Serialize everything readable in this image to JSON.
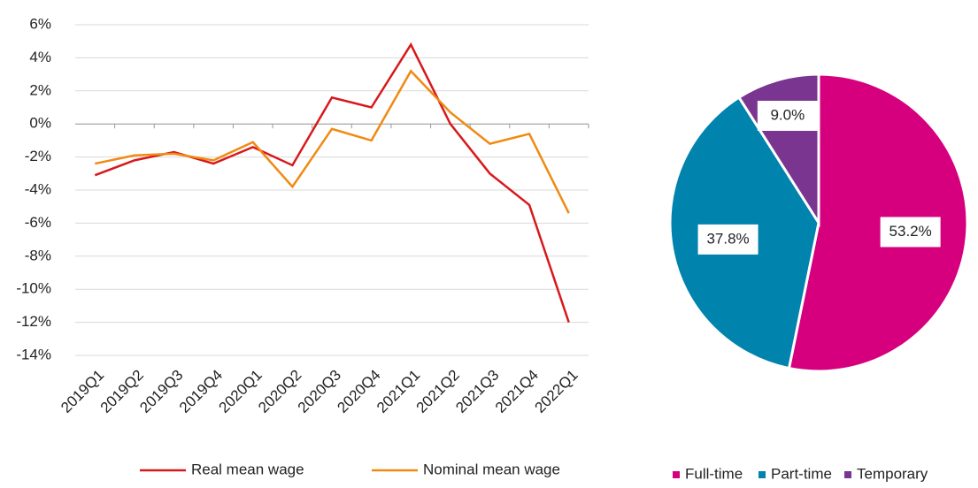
{
  "chart_data": [
    {
      "type": "line",
      "categories": [
        "2019Q1",
        "2019Q2",
        "2019Q3",
        "2019Q4",
        "2020Q1",
        "2020Q2",
        "2020Q3",
        "2020Q4",
        "2021Q1",
        "2021Q2",
        "2021Q3",
        "2021Q4",
        "2022Q1"
      ],
      "series": [
        {
          "name": "Real mean wage",
          "color": "#d7191c",
          "values": [
            -3.1,
            -2.2,
            -1.7,
            -2.4,
            -1.4,
            -2.5,
            1.6,
            1.0,
            4.8,
            0.0,
            -3.0,
            -4.9,
            -12.0
          ]
        },
        {
          "name": "Nominal mean wage",
          "color": "#f08a12",
          "values": [
            -2.4,
            -1.9,
            -1.8,
            -2.2,
            -1.1,
            -3.8,
            -0.3,
            -1.0,
            3.2,
            0.7,
            -1.2,
            -0.6,
            -5.4
          ]
        }
      ],
      "ylim": [
        -14,
        6
      ],
      "yticks": [
        {
          "value": -14,
          "label": "-14%"
        },
        {
          "value": -12,
          "label": "-12%"
        },
        {
          "value": -10,
          "label": "-10%"
        },
        {
          "value": -8,
          "label": "-8%"
        },
        {
          "value": -6,
          "label": "-6%"
        },
        {
          "value": -4,
          "label": "-4%"
        },
        {
          "value": -2,
          "label": "-2%"
        },
        {
          "value": 0,
          "label": "0%"
        },
        {
          "value": 2,
          "label": "2%"
        },
        {
          "value": 4,
          "label": "4%"
        },
        {
          "value": 6,
          "label": "6%"
        }
      ],
      "grid": true,
      "legend": "bottom"
    },
    {
      "type": "pie",
      "categories": [
        "Full-time",
        "Part-time",
        "Temporary"
      ],
      "values": [
        53.2,
        37.8,
        9.0
      ],
      "value_labels": [
        "53.2%",
        "37.8%",
        "9.0%"
      ],
      "colors": [
        "#d6007f",
        "#0083ad",
        "#7a3590"
      ],
      "legend": "bottom"
    }
  ]
}
